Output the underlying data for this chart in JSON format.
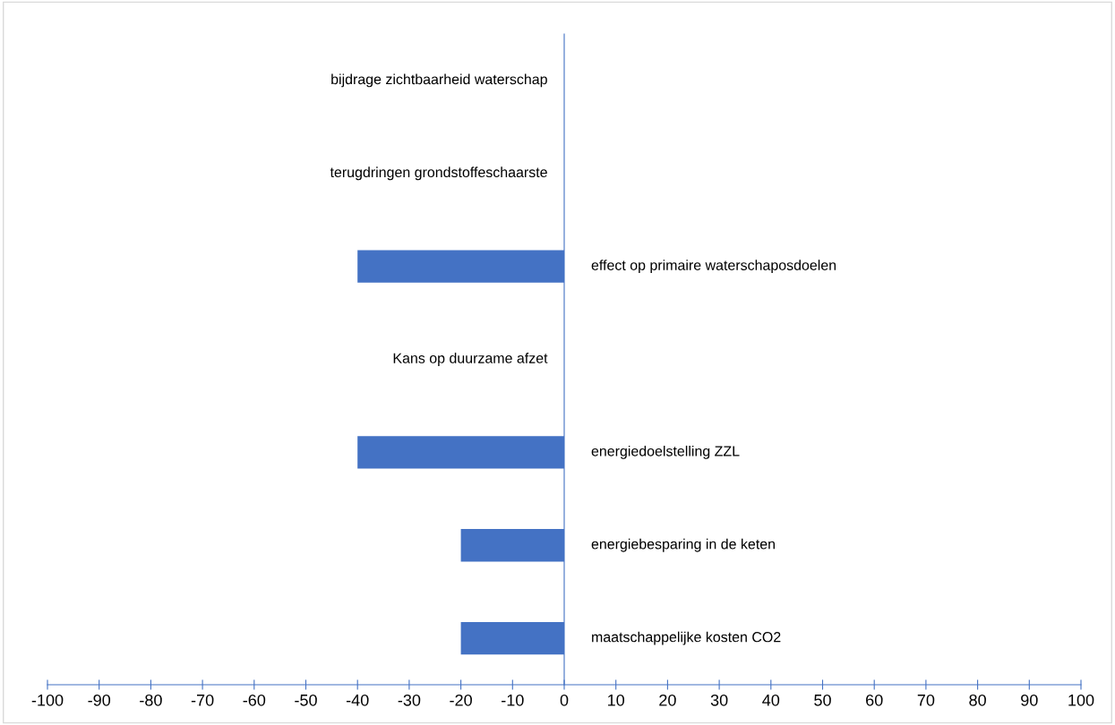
{
  "chart_data": {
    "type": "bar",
    "orientation": "horizontal",
    "categories": [
      "bijdrage zichtbaarheid waterschap",
      "terugdringen grondstoffeschaarste",
      "effect op primaire waterschaposdoelen",
      "Kans op duurzame afzet",
      "energiedoelstelling ZZL",
      "energiebesparing in de keten",
      "maatschappelijke kosten CO2"
    ],
    "values": [
      0,
      0,
      -40,
      0,
      -40,
      -20,
      -20
    ],
    "color": "#4472c4",
    "xlim": [
      -100,
      100
    ],
    "xticks": [
      -100,
      -90,
      -80,
      -70,
      -60,
      -50,
      -40,
      -30,
      -20,
      -10,
      0,
      10,
      20,
      30,
      40,
      50,
      60,
      70,
      80,
      90,
      100
    ],
    "grid": false,
    "legend": false
  }
}
